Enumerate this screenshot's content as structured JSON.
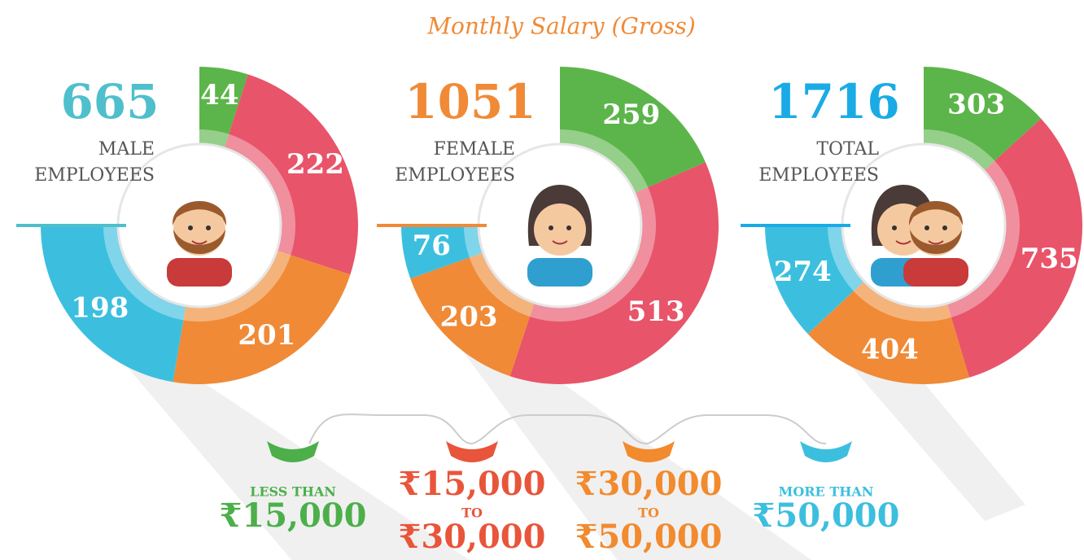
{
  "header": {
    "title": "Monthly Salary (Gross)"
  },
  "chart_data": [
    {
      "type": "donut",
      "total": 665,
      "label_lines": [
        "MALE",
        "EMPLOYEES"
      ],
      "total_color": "#4fbfcc",
      "values": [
        44,
        222,
        201,
        198
      ],
      "colors": [
        "#5cb54a",
        "#e8546a",
        "#f08a36",
        "#3cbfdf"
      ]
    },
    {
      "type": "donut",
      "total": 1051,
      "label_lines": [
        "FEMALE",
        "EMPLOYEES"
      ],
      "total_color": "#f08a36",
      "values": [
        259,
        513,
        203,
        76
      ],
      "colors": [
        "#5cb54a",
        "#e8546a",
        "#f08a36",
        "#3cbfdf"
      ]
    },
    {
      "type": "donut",
      "total": 1716,
      "label_lines": [
        "TOTAL",
        "EMPLOYEES"
      ],
      "total_color": "#1aabe6",
      "values": [
        303,
        735,
        404,
        274
      ],
      "colors": [
        "#5cb54a",
        "#e8546a",
        "#f08a36",
        "#3cbfdf"
      ]
    }
  ],
  "legend": [
    {
      "color": "#4caf4a",
      "lines": [
        "LESS THAN",
        "₹15,000"
      ]
    },
    {
      "color": "#e8553a",
      "lines": [
        "₹15,000",
        "TO",
        "₹30,000"
      ]
    },
    {
      "color": "#f28a2e",
      "lines": [
        "₹30,000",
        "TO",
        "₹50,000"
      ]
    },
    {
      "color": "#3cbfdf",
      "lines": [
        "MORE THAN",
        "₹50,000"
      ]
    }
  ]
}
